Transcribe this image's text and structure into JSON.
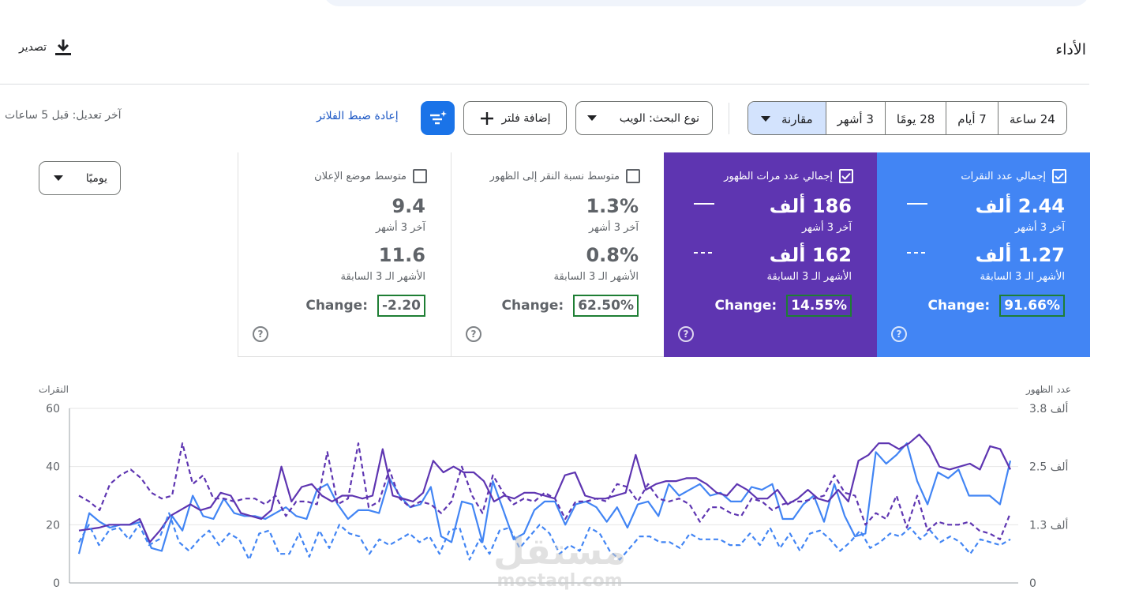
{
  "header": {
    "title": "الأداء",
    "export_label": "تصدير"
  },
  "toolbar": {
    "ranges": [
      "24 ساعة",
      "7 أيام",
      "28 يومًا",
      "3 أشهر"
    ],
    "compare_label": "مقارنة",
    "search_type": "نوع البحث: الويب",
    "add_filter": "إضافة فلتر",
    "reset_filters": "إعادة ضبط الفلاتر",
    "last_updated": "آخر تعديل: قبل 5 ساعات"
  },
  "granularity": "يوميًا",
  "metrics": [
    {
      "title": "إجمالي عدد النقرات",
      "checked": true,
      "value": "2.44 ألف",
      "value_label": "آخر 3 أشهر",
      "prev": "1.27 ألف",
      "prev_label": "الأشهر الـ 3 السابقة",
      "change_label": "Change:",
      "change": "91.66%",
      "color": "#4285f4"
    },
    {
      "title": "إجمالي عدد مرات الظهور",
      "checked": true,
      "value": "186 ألف",
      "value_label": "آخر 3 أشهر",
      "prev": "162 ألف",
      "prev_label": "الأشهر الـ 3 السابقة",
      "change_label": "Change:",
      "change": "14.55%",
      "color": "#5e35b1"
    },
    {
      "title": "متوسط نسبة النقر إلى الظهور",
      "checked": false,
      "value": "1.3%",
      "value_label": "آخر 3 أشهر",
      "prev": "0.8%",
      "prev_label": "الأشهر الـ 3 السابقة",
      "change_label": "Change:",
      "change": "62.50%"
    },
    {
      "title": "متوسط موضع الإعلان",
      "checked": false,
      "value": "9.4",
      "value_label": "آخر 3 أشهر",
      "prev": "11.6",
      "prev_label": "الأشهر الـ 3 السابقة",
      "change_label": "Change:",
      "change": "-2.20"
    }
  ],
  "chart_data": {
    "type": "line",
    "left_axis": {
      "title": "النقرات",
      "ticks": [
        "60",
        "40",
        "20",
        "0"
      ],
      "range": [
        0,
        60
      ]
    },
    "right_axis": {
      "title": "عدد الظهور",
      "ticks": [
        "3.8 ألف",
        "2.5 ألف",
        "1.3 ألف",
        "0"
      ],
      "range": [
        0,
        3.8
      ]
    },
    "grid": true,
    "series": [
      {
        "color": "#4285f4",
        "style": "solid",
        "axis": "left",
        "values": [
          10,
          24,
          21,
          19,
          20,
          20,
          21,
          12,
          11,
          23,
          18,
          30,
          23,
          22,
          29,
          24,
          23,
          23,
          22,
          24,
          26,
          23,
          22,
          32,
          34,
          27,
          22,
          25,
          25,
          24,
          36,
          30,
          26,
          27,
          33,
          16,
          14,
          28,
          27,
          14,
          35,
          25,
          15,
          17,
          25,
          28,
          28,
          20,
          27,
          28,
          26,
          21,
          26,
          19,
          27,
          28,
          23,
          34,
          30,
          32,
          34,
          30,
          31,
          28,
          28,
          33,
          32,
          34,
          22,
          22,
          27,
          30,
          21,
          34,
          23,
          16,
          17,
          45,
          41,
          44,
          48,
          35,
          27,
          38,
          36,
          39,
          30,
          30,
          30,
          27,
          42
        ]
      },
      {
        "color": "#5e35b1",
        "style": "solid",
        "axis": "left",
        "values": [
          18,
          18.5,
          19,
          20,
          20,
          20,
          22,
          14,
          18,
          23,
          25,
          27,
          25,
          26,
          31,
          30,
          24,
          23,
          22,
          25,
          40,
          28,
          33,
          34,
          30,
          28,
          30,
          30,
          29,
          30,
          46,
          30,
          29,
          28,
          31,
          42,
          38,
          40,
          38,
          38,
          35,
          28,
          30,
          29,
          31,
          31,
          30,
          29,
          37,
          38,
          30,
          29,
          29,
          30,
          31,
          44,
          32,
          34,
          35,
          35,
          36,
          36,
          34,
          31,
          30,
          34,
          32,
          29,
          29,
          32,
          27,
          29,
          32,
          29,
          28,
          32,
          28,
          42,
          44,
          48,
          48,
          46,
          48,
          51,
          47,
          40,
          39,
          40,
          41,
          39,
          47,
          46,
          39
        ]
      },
      {
        "color": "#4285f4",
        "style": "dashed",
        "axis": "left",
        "values": [
          14,
          20,
          13,
          18,
          19,
          15,
          20,
          13,
          15,
          24,
          14,
          11,
          15,
          18,
          13,
          17,
          15,
          8,
          17,
          18,
          10,
          10,
          17,
          9,
          18,
          12,
          20,
          17,
          16,
          10,
          15,
          13,
          15,
          17,
          14,
          16,
          10,
          18,
          19,
          8,
          15,
          10,
          18,
          19,
          12,
          16,
          20,
          17,
          10,
          13,
          11,
          19,
          17,
          11,
          8,
          12,
          16,
          16,
          14,
          14,
          12,
          17,
          15,
          15,
          15,
          13,
          13,
          17,
          13,
          19,
          12,
          17,
          11,
          17,
          18,
          15,
          11,
          14,
          18,
          12,
          14,
          17,
          16,
          19,
          15,
          18,
          14,
          16,
          14,
          10,
          15,
          14,
          13,
          15
        ]
      },
      {
        "color": "#5e35b1",
        "style": "dashed",
        "axis": "left",
        "values": [
          30,
          28,
          25,
          34,
          37,
          39,
          36,
          31,
          29,
          30,
          48,
          34,
          37,
          29,
          29,
          28,
          29,
          29,
          27,
          30,
          23,
          28,
          28,
          27,
          45,
          27,
          29,
          48,
          26,
          28,
          39,
          29,
          26,
          28,
          27,
          24,
          28,
          40,
          30,
          24,
          37,
          31,
          27,
          29,
          28,
          31,
          29,
          22,
          28,
          28,
          29,
          28,
          34,
          33,
          28,
          34,
          29,
          28,
          29,
          27,
          21,
          26,
          26,
          24,
          23,
          29,
          28,
          25,
          27,
          28,
          28,
          29,
          30,
          37,
          31,
          30,
          20,
          24,
          22,
          30,
          19,
          30,
          18,
          21,
          20,
          20,
          21,
          18,
          17,
          15,
          24
        ]
      }
    ]
  },
  "watermark": {
    "line1": "مستقل",
    "line2": "mostaql.com"
  }
}
